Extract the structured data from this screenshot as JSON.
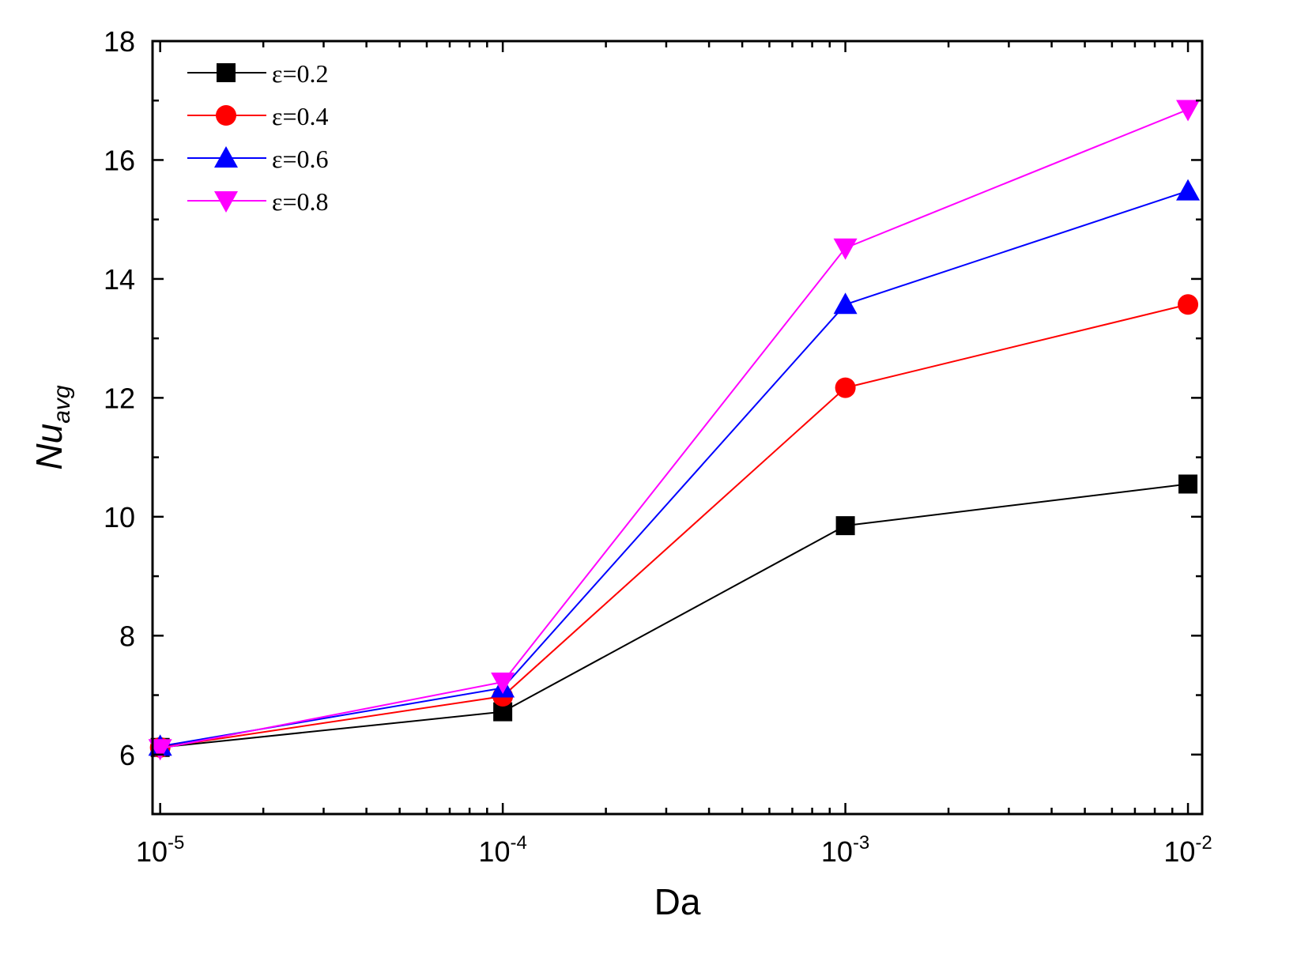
{
  "chart_data": {
    "type": "line",
    "xscale": "log",
    "x": [
      1e-05,
      0.0001,
      0.001,
      0.01
    ],
    "xlim": [
      9.5e-06,
      0.011
    ],
    "ylim": [
      5,
      18
    ],
    "yticks": [
      6,
      8,
      10,
      12,
      14,
      16,
      18
    ],
    "xticks": [
      {
        "base": "10",
        "exp": "-5",
        "value": 1e-05
      },
      {
        "base": "10",
        "exp": "-4",
        "value": 0.0001
      },
      {
        "base": "10",
        "exp": "-3",
        "value": 0.001
      },
      {
        "base": "10",
        "exp": "-2",
        "value": 0.01
      }
    ],
    "xlabel": "Da",
    "ylabel": {
      "main": "Nu",
      "sub": "avg"
    },
    "legend_position": "top-left",
    "series": [
      {
        "name": "ε=0.2",
        "color": "#000000",
        "marker": "square",
        "values": [
          6.12,
          6.72,
          9.85,
          10.55
        ]
      },
      {
        "name": "ε=0.4",
        "color": "#ff0000",
        "marker": "circle",
        "values": [
          6.12,
          6.98,
          12.17,
          13.57
        ]
      },
      {
        "name": "ε=0.6",
        "color": "#0000ff",
        "marker": "triangle-up",
        "values": [
          6.14,
          7.12,
          13.57,
          15.48
        ]
      },
      {
        "name": "ε=0.8",
        "color": "#ff00ff",
        "marker": "triangle-down",
        "values": [
          6.1,
          7.22,
          14.52,
          16.85
        ]
      }
    ]
  }
}
